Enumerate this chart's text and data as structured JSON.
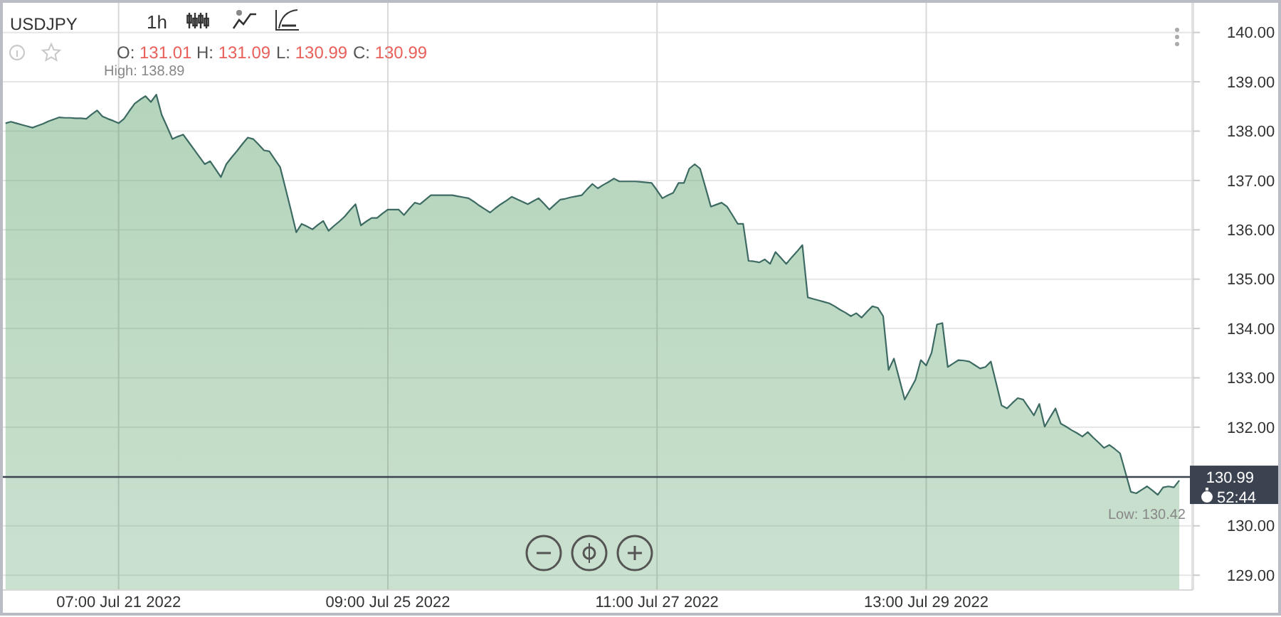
{
  "chart_data": {
    "type": "area",
    "title": "USDJPY",
    "categories": [
      null,
      null,
      null,
      null,
      null,
      null,
      null,
      null,
      null,
      null,
      null,
      null,
      null,
      null,
      null,
      null,
      null,
      null,
      null,
      null,
      null,
      "07:00 Jul 21 2022",
      null,
      null,
      null,
      null,
      null,
      null,
      null,
      null,
      null,
      null,
      null,
      null,
      null,
      null,
      null,
      null,
      null,
      null,
      null,
      null,
      null,
      null,
      null,
      null,
      null,
      null,
      null,
      null,
      null,
      null,
      null,
      null,
      null,
      null,
      null,
      null,
      null,
      null,
      null,
      null,
      null,
      null,
      null,
      null,
      null,
      null,
      null,
      null,
      null,
      "09:00 Jul 25 2022",
      null,
      null,
      null,
      null,
      null,
      null,
      null,
      null,
      null,
      null,
      null,
      null,
      null,
      null,
      null,
      null,
      null,
      null,
      null,
      null,
      null,
      null,
      null,
      null,
      null,
      null,
      null,
      null,
      null,
      null,
      null,
      null,
      null,
      null,
      null,
      null,
      null,
      null,
      null,
      null,
      null,
      null,
      null,
      null,
      null,
      null,
      null,
      null,
      null,
      "11:00 Jul 27 2022",
      null,
      null,
      null,
      null,
      null,
      null,
      null,
      null,
      null,
      null,
      null,
      null,
      null,
      null,
      null,
      null,
      null,
      null,
      null,
      null,
      null,
      null,
      null,
      null,
      null,
      null,
      null,
      null,
      null,
      null,
      null,
      null,
      null,
      null,
      null,
      null,
      null,
      null,
      null,
      null,
      null,
      null,
      null,
      null,
      null,
      null,
      null,
      null,
      null,
      "13:00 Jul 29 2022",
      null,
      null,
      null,
      null,
      null,
      null,
      null,
      null,
      null,
      null,
      null,
      null,
      null,
      null,
      null,
      null,
      null,
      null,
      null,
      null,
      null,
      null,
      null,
      null,
      null,
      null,
      null,
      null,
      null,
      null,
      null,
      null,
      null,
      null,
      null,
      null,
      null,
      null,
      null,
      null,
      null,
      null,
      null,
      null,
      null,
      null,
      null,
      null,
      null
    ],
    "series": [
      {
        "color": "#3d6b63",
        "values": [
          138.16,
          138.19,
          138.16,
          138.13,
          138.1,
          138.07,
          138.11,
          138.15,
          138.2,
          138.24,
          138.28,
          138.27,
          138.27,
          138.26,
          138.26,
          138.25,
          138.34,
          138.42,
          138.3,
          138.25,
          138.21,
          138.16,
          138.25,
          138.41,
          138.56,
          138.64,
          138.71,
          138.59,
          138.74,
          138.33,
          138.09,
          137.84,
          137.89,
          137.93,
          137.78,
          137.63,
          137.48,
          137.33,
          137.39,
          137.23,
          137.07,
          137.33,
          137.47,
          137.6,
          137.74,
          137.87,
          137.84,
          137.73,
          137.61,
          137.59,
          137.43,
          137.27,
          136.84,
          136.4,
          135.95,
          136.12,
          136.07,
          136.01,
          136.1,
          136.18,
          135.98,
          136.08,
          136.17,
          136.27,
          136.4,
          136.52,
          136.09,
          136.17,
          136.24,
          136.24,
          136.33,
          136.41,
          136.41,
          136.41,
          136.3,
          136.43,
          136.55,
          136.52,
          136.61,
          136.7,
          136.7,
          136.7,
          136.7,
          136.7,
          136.68,
          136.66,
          136.64,
          136.57,
          136.49,
          136.42,
          136.35,
          136.44,
          136.52,
          136.59,
          136.67,
          136.62,
          136.57,
          136.52,
          136.58,
          136.64,
          136.53,
          136.41,
          136.51,
          136.61,
          136.63,
          136.66,
          136.68,
          136.7,
          136.82,
          136.93,
          136.84,
          136.91,
          136.97,
          137.04,
          136.98,
          136.98,
          136.98,
          136.98,
          136.97,
          136.96,
          136.95,
          136.8,
          136.64,
          136.7,
          136.75,
          136.95,
          136.95,
          137.24,
          137.33,
          137.24,
          136.86,
          136.47,
          136.51,
          136.55,
          136.47,
          136.3,
          136.12,
          136.12,
          135.37,
          135.36,
          135.34,
          135.4,
          135.31,
          135.55,
          135.43,
          135.31,
          135.44,
          135.56,
          135.69,
          134.63,
          134.6,
          134.57,
          134.54,
          134.51,
          134.45,
          134.38,
          134.32,
          134.25,
          134.31,
          134.22,
          134.34,
          134.45,
          134.42,
          134.25,
          133.16,
          133.39,
          132.98,
          132.56,
          132.76,
          132.96,
          133.36,
          133.25,
          133.51,
          134.08,
          134.11,
          133.22,
          133.29,
          133.36,
          133.35,
          133.33,
          133.26,
          133.19,
          133.22,
          133.33,
          132.89,
          132.44,
          132.38,
          132.49,
          132.59,
          132.56,
          132.4,
          132.24,
          132.47,
          132.01,
          132.2,
          132.38,
          132.07,
          132.01,
          131.94,
          131.88,
          131.81,
          131.9,
          131.79,
          131.69,
          131.58,
          131.64,
          131.56,
          131.47,
          131.08,
          130.69,
          130.66,
          130.73,
          130.8,
          130.72,
          130.63,
          130.78,
          130.8,
          130.78,
          130.92,
          null,
          null
        ]
      }
    ],
    "ylim": [
      128.7,
      140.6
    ],
    "yticks": [
      {
        "value": 129,
        "label": "129.00"
      },
      {
        "value": 130,
        "label": "130.00"
      },
      {
        "value": 132,
        "label": "132.00"
      },
      {
        "value": 133,
        "label": "133.00"
      },
      {
        "value": 134,
        "label": "134.00"
      },
      {
        "value": 135,
        "label": "135.00"
      },
      {
        "value": 136,
        "label": "136.00"
      },
      {
        "value": 137,
        "label": "137.00"
      },
      {
        "value": 138,
        "label": "138.00"
      },
      {
        "value": 139,
        "label": "139.00"
      },
      {
        "value": 140,
        "label": "140.00"
      }
    ],
    "grid": true,
    "ref_lines": [
      {
        "axis": "y",
        "value": 130.99,
        "label": "130.99",
        "color": "#3b4350"
      }
    ],
    "annotations": [
      "1h",
      "O: 131.01",
      "H: 131.09",
      "L: 130.99",
      "C: 130.99",
      "High: 138.89",
      "Low: 130.42",
      "52:44"
    ]
  }
}
